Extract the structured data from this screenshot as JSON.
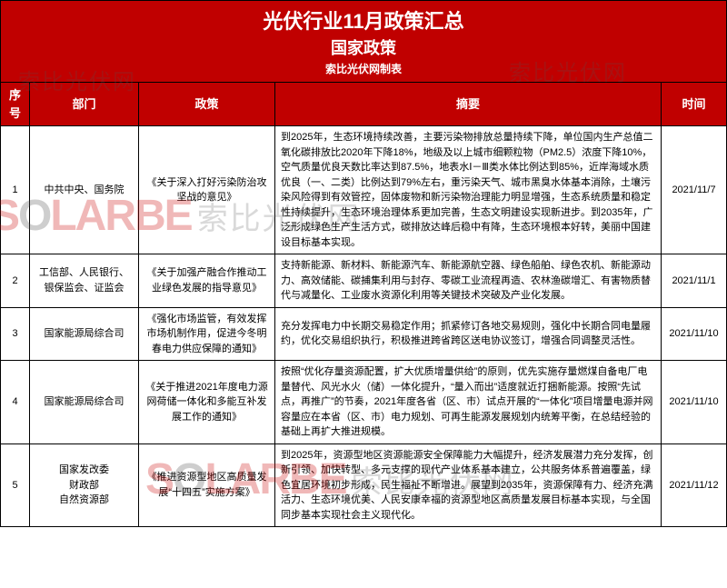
{
  "header": {
    "title": "光伏行业11月政策汇总",
    "subtitle": "国家政策",
    "credit": "索比光伏网制表"
  },
  "columns": {
    "num": "序号",
    "dept": "部门",
    "policy": "政策",
    "summary": "摘要",
    "date": "时间"
  },
  "rows": [
    {
      "num": "1",
      "dept": "中共中央、国务院",
      "policy": "《关于深入打好污染防治攻坚战的意见》",
      "summary": "到2025年，生态环境持续改善，主要污染物排放总量持续下降，单位国内生产总值二氧化碳排放比2020年下降18%，地级及以上城市细颗粒物（PM2.5）浓度下降10%，空气质量优良天数比率达到87.5%，地表水Ⅰ－Ⅲ类水体比例达到85%，近岸海域水质优良（一、二类）比例达到79%左右，重污染天气、城市黑臭水体基本消除，土壤污染风险得到有效管控，固体废物和新污染物治理能力明显增强，生态系统质量和稳定性持续提升，生态环境治理体系更加完善，生态文明建设实现新进步。到2035年，广泛形成绿色生产生活方式，碳排放达峰后稳中有降，生态环境根本好转，美丽中国建设目标基本实现。",
      "date": "2021/11/7"
    },
    {
      "num": "2",
      "dept": "工信部、人民银行、银保监会、证监会",
      "policy": "《关于加强产融合作推动工业绿色发展的指导意见》",
      "summary": "支持新能源、新材料、新能源汽车、新能源航空器、绿色船舶、绿色农机、新能源动力、高效储能、碳捕集利用与封存、零碳工业流程再造、农林渔碳增汇、有害物质替代与减量化、工业废水资源化利用等关键技术突破及产业化发展。",
      "date": "2021/11/1"
    },
    {
      "num": "3",
      "dept": "国家能源局综合司",
      "policy": "《强化市场监管，有效发挥市场机制作用，促进今冬明春电力供应保障的通知》",
      "summary": "充分发挥电力中长期交易稳定作用；抓紧修订各地交易规则，强化中长期合同电量履约，优化交易组织执行，积极推进跨省跨区送电协议签订，增强合同调整灵活性。",
      "date": "2021/11/10"
    },
    {
      "num": "4",
      "dept": "国家能源局综合司",
      "policy": "《关于推进2021年度电力源网荷储一体化和多能互补发展工作的通知》",
      "summary": "按照“优化存量资源配置，扩大优质增量供给”的原则，优先实施存量燃煤自备电厂电量替代、风光水火（储）一体化提升，“量入而出”适度就近打捆新能源。按照“先试点，再推广”的节奏，2021年度各省（区、市）试点开展的“一体化”项目增量电源并网容量应在本省（区、市）电力规划、可再生能源发展规划内统筹平衡，在总结经验的基础上再扩大推进规模。",
      "date": "2021/11/10"
    },
    {
      "num": "5",
      "dept": "国家发改委\n财政部\n自然资源部",
      "policy": "《推进资源型地区高质量发展“十四五”实施方案》",
      "summary": "到2025年，资源型地区资源能源安全保障能力大幅提升，经济发展潜力充分发挥，创新引领、加快转型、多元支撑的现代产业体系基本建立，公共服务体系普遍覆盖，绿色宜居环境初步形成，民生福祉不断增进。展望到2035年，资源保障有力、经济充满活力、生态环境优美、人民安康幸福的资源型地区高质量发展目标基本实现，与全国同步基本实现社会主义现代化。",
      "date": "2021/11/12"
    }
  ],
  "watermark": {
    "logo_html": "S<span class='grey'>O</span>LARBE",
    "cn": "索比光伏网"
  },
  "colors": {
    "header_bg": "#c00000",
    "header_text": "#ffffff",
    "border": "#000000",
    "wm_red": "rgba(200,0,0,0.28)",
    "wm_grey": "rgba(80,80,80,0.25)"
  }
}
